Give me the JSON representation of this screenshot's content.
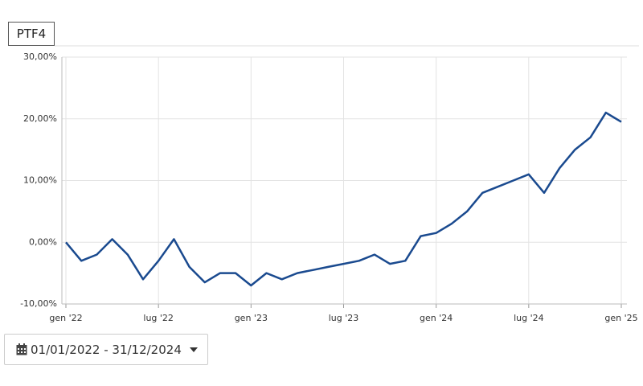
{
  "tab": "PTF4",
  "chart_data": {
    "type": "line",
    "x": [
      "2022-01",
      "2022-02",
      "2022-03",
      "2022-04",
      "2022-05",
      "2022-06",
      "2022-07",
      "2022-08",
      "2022-09",
      "2022-10",
      "2022-11",
      "2022-12",
      "2023-01",
      "2023-02",
      "2023-03",
      "2023-04",
      "2023-05",
      "2023-06",
      "2023-07",
      "2023-08",
      "2023-09",
      "2023-10",
      "2023-11",
      "2023-12",
      "2024-01",
      "2024-02",
      "2024-03",
      "2024-04",
      "2024-05",
      "2024-06",
      "2024-07",
      "2024-08",
      "2024-09",
      "2024-10",
      "2024-11",
      "2024-12",
      "2025-01"
    ],
    "series": [
      {
        "name": "PTF4",
        "color": "#1a4a8f",
        "values": [
          0,
          -3,
          -2,
          0.5,
          -2,
          -6,
          -3,
          0.5,
          -4,
          -6.5,
          -5,
          -5,
          -7,
          -5,
          -6,
          -5,
          -4.5,
          -4,
          -3.5,
          -3,
          -2,
          -3.5,
          -3,
          1,
          1.5,
          3,
          5,
          8,
          9,
          10,
          11,
          8,
          12,
          15,
          17,
          21,
          19.5
        ]
      }
    ],
    "xlim": [
      "2022-01",
      "2025-01"
    ],
    "xticks": [
      {
        "value": "2022-01",
        "label": "gen '22"
      },
      {
        "value": "2022-07",
        "label": "lug '22"
      },
      {
        "value": "2023-01",
        "label": "gen '23"
      },
      {
        "value": "2023-07",
        "label": "lug '23"
      },
      {
        "value": "2024-01",
        "label": "gen '24"
      },
      {
        "value": "2024-07",
        "label": "lug '24"
      },
      {
        "value": "2025-01",
        "label": "gen '25"
      }
    ],
    "ylim": [
      -10,
      30
    ],
    "yticks": [
      {
        "value": -10,
        "label": "-10,00%"
      },
      {
        "value": 0,
        "label": "0,00%"
      },
      {
        "value": 10,
        "label": "10,00%"
      },
      {
        "value": 20,
        "label": "20,00%"
      },
      {
        "value": 30,
        "label": "30,00%"
      }
    ],
    "grid": true
  },
  "date_range": "01/01/2022 - 31/12/2024"
}
